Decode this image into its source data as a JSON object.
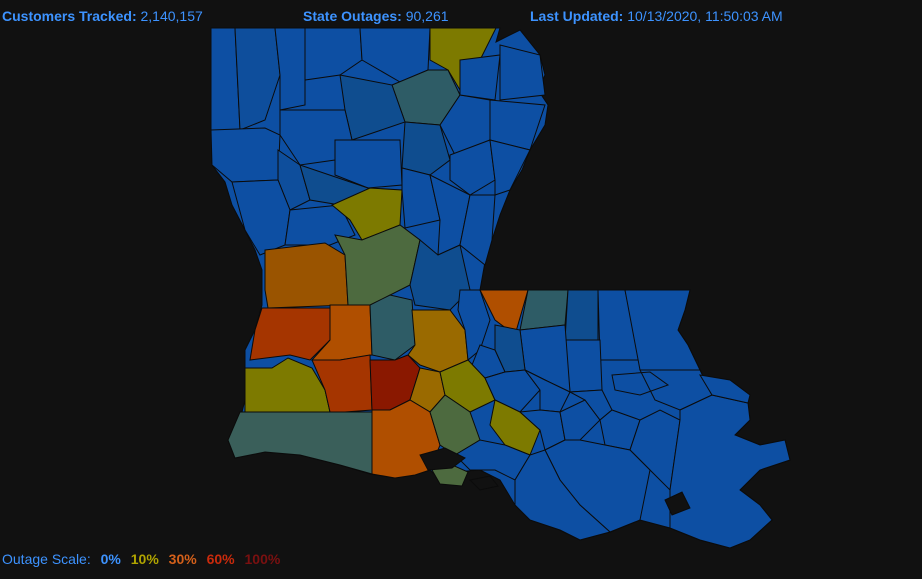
{
  "stats": {
    "customers_label": "Customers Tracked:",
    "customers_value": "2,140,157",
    "outages_label": "State Outages:",
    "outages_value": "90,261",
    "updated_label": "Last Updated:",
    "updated_value": "10/13/2020, 11:50:03 AM"
  },
  "scale": {
    "title": "Outage Scale:",
    "steps": [
      {
        "label": "0%",
        "color": "#3d93ff"
      },
      {
        "label": "10%",
        "color": "#b0a400"
      },
      {
        "label": "30%",
        "color": "#d4601a"
      },
      {
        "label": "60%",
        "color": "#c92a0c"
      },
      {
        "label": "100%",
        "color": "#7a1010"
      }
    ]
  },
  "colors": {
    "background": "#111111",
    "level_0": "#0d4fa3",
    "level_low": "#0f4d8f",
    "level_teal": "#2e5c66",
    "level_slate": "#3a5f5a",
    "level_green": "#4d6a3f",
    "level_olive": "#7d7a00",
    "level_amber": "#9a6a00",
    "level_orange": "#b04f00",
    "level_redorange": "#a53500",
    "level_red": "#8a1800"
  }
}
